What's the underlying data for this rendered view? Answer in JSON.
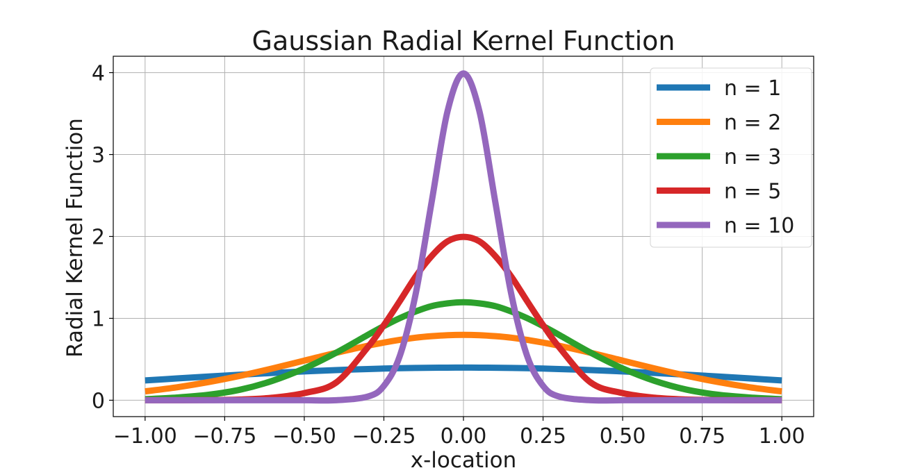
{
  "chart_data": {
    "type": "line",
    "title": "Gaussian Radial Kernel Function",
    "xlabel": "x-location",
    "ylabel": "Radial Kernel Function",
    "xlim": [
      -1.1,
      1.1
    ],
    "ylim": [
      -0.2,
      4.2
    ],
    "xticks": [
      -1.0,
      -0.75,
      -0.5,
      -0.25,
      0.0,
      0.25,
      0.5,
      0.75,
      1.0
    ],
    "xtick_labels": [
      "−1.00",
      "−0.75",
      "−0.50",
      "−0.25",
      "0.00",
      "0.25",
      "0.50",
      "0.75",
      "1.00"
    ],
    "yticks": [
      0,
      1,
      2,
      3,
      4
    ],
    "ytick_labels": [
      "0",
      "1",
      "2",
      "3",
      "4"
    ],
    "grid": true,
    "legend_position": "top-right",
    "x": [
      -1.0,
      -0.9,
      -0.8,
      -0.7,
      -0.6,
      -0.5,
      -0.4,
      -0.3,
      -0.25,
      -0.2,
      -0.15,
      -0.1,
      -0.05,
      0.0,
      0.05,
      0.1,
      0.15,
      0.2,
      0.25,
      0.3,
      0.4,
      0.5,
      0.6,
      0.7,
      0.8,
      0.9,
      1.0
    ],
    "series": [
      {
        "name": "n = 1",
        "color": "#1f77b4",
        "values": [
          0.242,
          0.266,
          0.29,
          0.312,
          0.333,
          0.352,
          0.368,
          0.381,
          0.387,
          0.391,
          0.394,
          0.397,
          0.398,
          0.399,
          0.398,
          0.397,
          0.394,
          0.391,
          0.387,
          0.381,
          0.368,
          0.352,
          0.333,
          0.312,
          0.29,
          0.266,
          0.242
        ]
      },
      {
        "name": "n = 2",
        "color": "#ff7f0e",
        "values": [
          0.108,
          0.158,
          0.222,
          0.299,
          0.388,
          0.484,
          0.579,
          0.666,
          0.704,
          0.737,
          0.764,
          0.782,
          0.794,
          0.798,
          0.794,
          0.782,
          0.764,
          0.737,
          0.704,
          0.666,
          0.579,
          0.484,
          0.388,
          0.299,
          0.222,
          0.158,
          0.108
        ]
      },
      {
        "name": "n = 3",
        "color": "#2ca02c",
        "values": [
          0.013,
          0.033,
          0.067,
          0.13,
          0.237,
          0.388,
          0.58,
          0.799,
          0.905,
          1.002,
          1.084,
          1.149,
          1.183,
          1.197,
          1.183,
          1.149,
          1.084,
          1.002,
          0.905,
          0.799,
          0.58,
          0.388,
          0.237,
          0.13,
          0.067,
          0.033,
          0.013
        ]
      },
      {
        "name": "n = 5",
        "color": "#d62728",
        "values": [
          0.0,
          0.0,
          0.002,
          0.009,
          0.031,
          0.087,
          0.216,
          0.65,
          0.917,
          1.21,
          1.511,
          1.76,
          1.94,
          1.995,
          1.94,
          1.76,
          1.511,
          1.21,
          0.917,
          0.65,
          0.216,
          0.087,
          0.031,
          0.009,
          0.002,
          0.0,
          0.0
        ]
      },
      {
        "name": "n = 10",
        "color": "#9467bd",
        "values": [
          0.0,
          0.0,
          0.0,
          0.0,
          0.0,
          0.0,
          0.0,
          0.045,
          0.175,
          0.54,
          1.3,
          2.42,
          3.53,
          3.99,
          3.53,
          2.42,
          1.3,
          0.54,
          0.175,
          0.045,
          0.0,
          0.0,
          0.0,
          0.0,
          0.0,
          0.0,
          0.0
        ]
      }
    ]
  }
}
